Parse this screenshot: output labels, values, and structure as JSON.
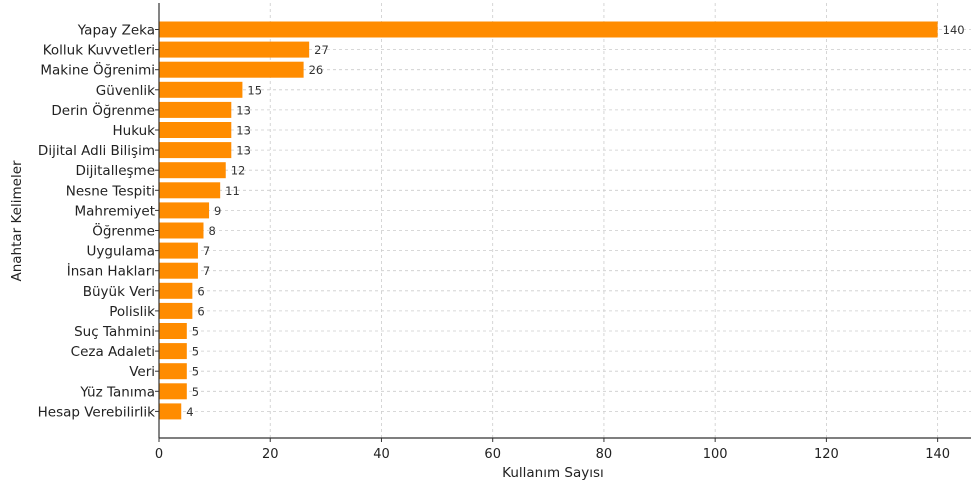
{
  "chart_data": {
    "type": "bar",
    "orientation": "horizontal",
    "title": "",
    "xlabel": "Kullanım Sayısı",
    "ylabel": "Anahtar Kelimeler",
    "categories": [
      "Yapay Zeka",
      "Kolluk Kuvvetleri",
      "Makine Öğrenimi",
      "Güvenlik",
      "Derin Öğrenme",
      "Hukuk",
      "Dijital Adli Bilişim",
      "Dijitalleşme",
      "Nesne Tespiti",
      "Mahremiyet",
      "Öğrenme",
      "Uygulama",
      "İnsan Hakları",
      "Büyük Veri",
      "Polislik",
      "Suç Tahmini",
      "Ceza Adaleti",
      "Veri",
      "Yüz Tanıma",
      "Hesap Verebilirlik"
    ],
    "values": [
      140,
      27,
      26,
      15,
      13,
      13,
      13,
      12,
      11,
      9,
      8,
      7,
      7,
      6,
      6,
      5,
      5,
      5,
      5,
      4
    ],
    "value_labels": [
      "140",
      "27",
      "26",
      "15",
      "13",
      "13",
      "13",
      "12",
      "11",
      "9",
      "8",
      "7",
      "7",
      "6",
      "6",
      "5",
      "5",
      "5",
      "5",
      "4"
    ],
    "xticks": [
      0,
      20,
      40,
      60,
      80,
      100,
      120,
      140
    ],
    "xtick_labels": [
      "0",
      "20",
      "40",
      "60",
      "80",
      "100",
      "120",
      "140"
    ],
    "xlim": [
      0,
      146
    ],
    "grid": true,
    "bar_color": "#ff8c00",
    "grid_color": "#cccccc"
  }
}
